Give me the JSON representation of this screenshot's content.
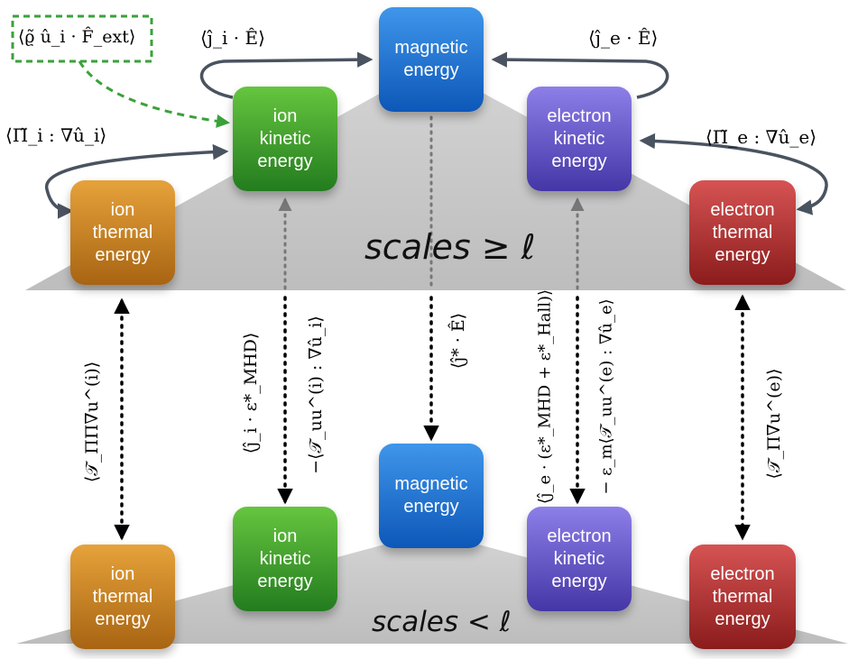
{
  "boxes": {
    "upper_magnetic": [
      "magnetic",
      "energy"
    ],
    "upper_ion_kinetic": [
      "ion",
      "kinetic",
      "energy"
    ],
    "upper_electron_kinetic": [
      "electron",
      "kinetic",
      "energy"
    ],
    "upper_ion_thermal": [
      "ion",
      "thermal",
      "energy"
    ],
    "upper_electron_thermal": [
      "electron",
      "thermal",
      "energy"
    ],
    "lower_magnetic": [
      "magnetic",
      "energy"
    ],
    "lower_ion_kinetic": [
      "ion",
      "kinetic",
      "energy"
    ],
    "lower_electron_kinetic": [
      "electron",
      "kinetic",
      "energy"
    ],
    "lower_ion_thermal": [
      "ion",
      "thermal",
      "energy"
    ],
    "lower_electron_thermal": [
      "electron",
      "thermal",
      "energy"
    ]
  },
  "scales": {
    "upper": "scales ≥ ℓ",
    "lower": "scales < ℓ"
  },
  "labels": {
    "forcing": "⟨ϱ̃ û_i · F̂_ext⟩",
    "ion_current_work": "⟨ĵ_i · Ê⟩",
    "electron_current_work": "⟨ĵ_e · Ê⟩",
    "ion_pressure_strain": "⟨Π̃_i : ∇û_i⟩",
    "electron_pressure_strain": "⟨Π̃_e : ∇û_e⟩",
    "ion_thermal_transfer": "⟨𝒯_ΠΠ∇u^(i)⟩",
    "ion_kinetic_transfer_1": "⟨ĵ_i · ε*_MHD⟩",
    "ion_kinetic_transfer_2": "−⟨𝒯_uu^(i) : ∇û_i⟩",
    "magnetic_transfer": "⟨ĵ* · Ê⟩",
    "electron_kinetic_transfer_1": "⟨ĵ_e · (ε*_MHD + ε*_Hall)⟩",
    "electron_kinetic_transfer_2": "− ε_m⟨𝒯_uu^(e) : ∇û_e⟩",
    "electron_thermal_transfer": "⟨𝒯_Π∇u^(e)⟩"
  },
  "colors": {
    "magnetic": "#1f6fd0",
    "ion_kinetic": "#3d9c2c",
    "ion_thermal": "#c98123",
    "electron_kinetic": "#6454c8",
    "electron_thermal": "#b03333",
    "arrow": "#4a5360",
    "forcing_arrow": "#3aa23a",
    "plane": "#cfcfcf"
  }
}
